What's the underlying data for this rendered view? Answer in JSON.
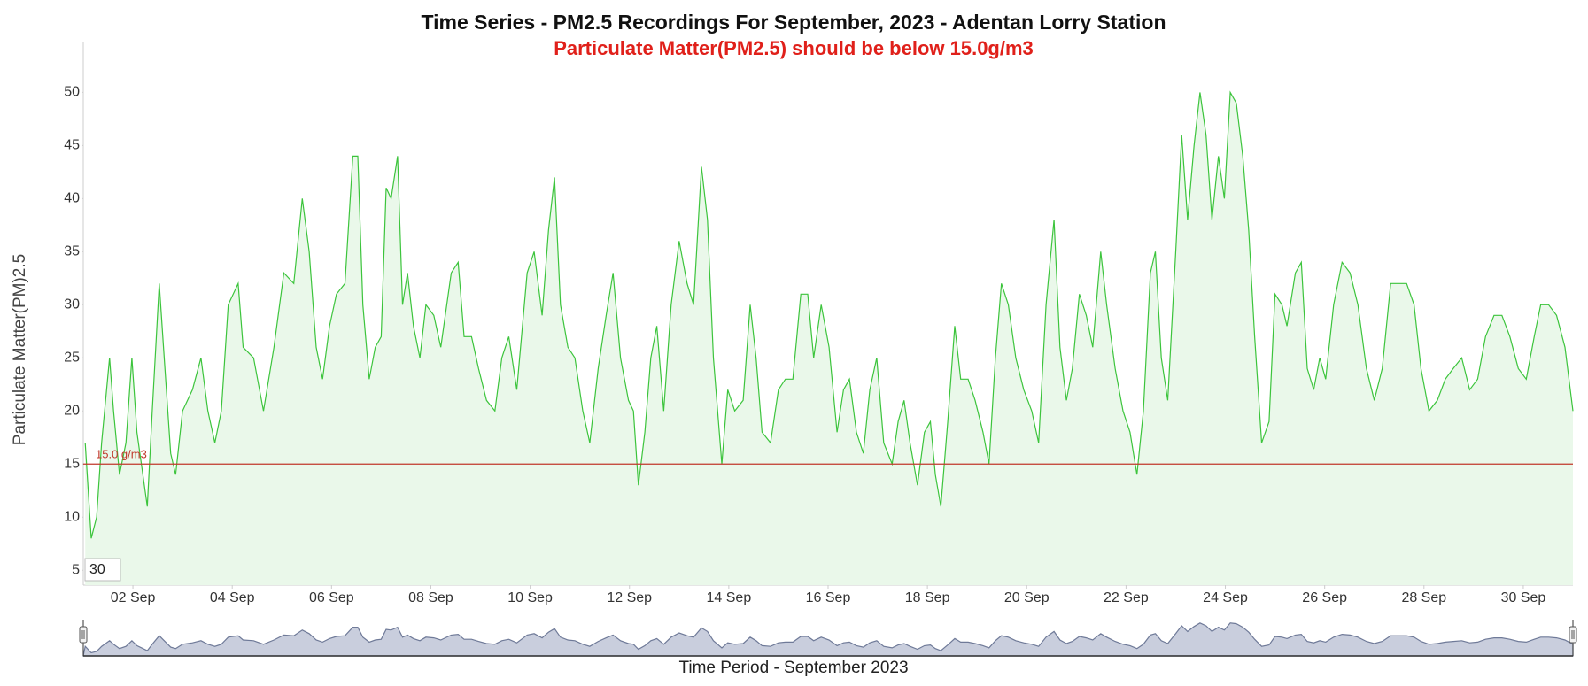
{
  "chart_data": {
    "type": "area",
    "title": "Time Series - PM2.5 Recordings For September, 2023 - Adentan Lorry Station",
    "subtitle": "Particulate Matter(PM2.5) should be below 15.0g/m3",
    "y_label": "Particulate Matter(PM)2.5",
    "x_label": "Time Period - September 2023",
    "range_input": "30",
    "threshold": {
      "value": 15,
      "label": "15.0 g/m3",
      "color": "#c0392b"
    },
    "color": "#3cc43c",
    "fill": "#eaf8ea",
    "grid": false,
    "xlim": [
      1,
      31
    ],
    "ylim": [
      3.6,
      54.7
    ],
    "yticks": [
      5,
      10,
      15,
      20,
      25,
      30,
      35,
      40,
      45,
      50
    ],
    "xticks": [
      {
        "value": 2,
        "label": "02 Sep"
      },
      {
        "value": 4,
        "label": "04 Sep"
      },
      {
        "value": 6,
        "label": "06 Sep"
      },
      {
        "value": 8,
        "label": "08 Sep"
      },
      {
        "value": 10,
        "label": "10 Sep"
      },
      {
        "value": 12,
        "label": "12 Sep"
      },
      {
        "value": 14,
        "label": "14 Sep"
      },
      {
        "value": 16,
        "label": "16 Sep"
      },
      {
        "value": 18,
        "label": "18 Sep"
      },
      {
        "value": 20,
        "label": "20 Sep"
      },
      {
        "value": 22,
        "label": "22 Sep"
      },
      {
        "value": 24,
        "label": "24 Sep"
      },
      {
        "value": 26,
        "label": "26 Sep"
      },
      {
        "value": 28,
        "label": "28 Sep"
      },
      {
        "value": 30,
        "label": "30 Sep"
      }
    ],
    "x": [
      1.04,
      1.16,
      1.27,
      1.37,
      1.53,
      1.61,
      1.73,
      1.86,
      1.98,
      2.08,
      2.29,
      2.39,
      2.53,
      2.63,
      2.76,
      2.86,
      3.0,
      3.2,
      3.37,
      3.51,
      3.65,
      3.78,
      3.92,
      4.12,
      4.22,
      4.43,
      4.63,
      4.84,
      5.04,
      5.24,
      5.41,
      5.55,
      5.69,
      5.82,
      5.96,
      6.1,
      6.27,
      6.43,
      6.53,
      6.63,
      6.76,
      6.88,
      7.0,
      7.1,
      7.2,
      7.33,
      7.43,
      7.53,
      7.65,
      7.78,
      7.9,
      8.06,
      8.2,
      8.41,
      8.55,
      8.67,
      8.82,
      8.96,
      9.12,
      9.29,
      9.43,
      9.57,
      9.73,
      9.94,
      10.08,
      10.24,
      10.37,
      10.49,
      10.61,
      10.76,
      10.9,
      11.06,
      11.2,
      11.37,
      11.53,
      11.67,
      11.82,
      11.98,
      12.08,
      12.18,
      12.31,
      12.43,
      12.55,
      12.69,
      12.84,
      13.0,
      13.16,
      13.29,
      13.45,
      13.57,
      13.69,
      13.86,
      13.98,
      14.12,
      14.29,
      14.43,
      14.55,
      14.67,
      14.84,
      15.0,
      15.14,
      15.29,
      15.45,
      15.59,
      15.71,
      15.86,
      16.02,
      16.18,
      16.31,
      16.43,
      16.57,
      16.71,
      16.84,
      16.98,
      17.12,
      17.29,
      17.41,
      17.53,
      17.65,
      17.8,
      17.94,
      18.06,
      18.16,
      18.27,
      18.41,
      18.55,
      18.67,
      18.82,
      18.96,
      19.12,
      19.24,
      19.37,
      19.49,
      19.63,
      19.78,
      19.94,
      20.1,
      20.24,
      20.39,
      20.55,
      20.67,
      20.8,
      20.92,
      21.06,
      21.2,
      21.33,
      21.49,
      21.61,
      21.78,
      21.94,
      22.08,
      22.22,
      22.35,
      22.49,
      22.59,
      22.71,
      22.84,
      23.0,
      23.12,
      23.24,
      23.37,
      23.49,
      23.61,
      23.73,
      23.86,
      23.98,
      24.1,
      24.22,
      24.35,
      24.47,
      24.59,
      24.73,
      24.88,
      25.0,
      25.14,
      25.24,
      25.41,
      25.53,
      25.65,
      25.78,
      25.9,
      26.02,
      26.18,
      26.35,
      26.51,
      26.67,
      26.84,
      27.0,
      27.16,
      27.33,
      27.49,
      27.65,
      27.8,
      27.94,
      28.1,
      28.27,
      28.43,
      28.59,
      28.76,
      28.92,
      29.08,
      29.24,
      29.41,
      29.57,
      29.73,
      29.9,
      30.06,
      30.22,
      30.35,
      30.51,
      30.67,
      30.84,
      31.0
    ],
    "values": [
      17,
      8,
      10,
      17,
      25,
      20,
      14,
      17,
      25,
      18,
      11,
      20,
      32,
      25,
      16,
      14,
      20,
      22,
      25,
      20,
      17,
      20,
      30,
      32,
      26,
      25,
      20,
      26,
      33,
      32,
      40,
      35,
      26,
      23,
      28,
      31,
      32,
      44,
      44,
      30,
      23,
      26,
      27,
      41,
      40,
      44,
      30,
      33,
      28,
      25,
      30,
      29,
      26,
      33,
      34,
      27,
      27,
      24,
      21,
      20,
      25,
      27,
      22,
      33,
      35,
      29,
      37,
      42,
      30,
      26,
      25,
      20,
      17,
      24,
      29,
      33,
      25,
      21,
      20,
      13,
      18,
      25,
      28,
      20,
      30,
      36,
      32,
      30,
      43,
      38,
      25,
      15,
      22,
      20,
      21,
      30,
      25,
      18,
      17,
      22,
      23,
      23,
      31,
      31,
      25,
      30,
      26,
      18,
      22,
      23,
      18,
      16,
      22,
      25,
      17,
      15,
      19,
      21,
      17,
      13,
      18,
      19,
      14,
      11,
      19,
      28,
      23,
      23,
      21,
      18,
      15,
      25,
      32,
      30,
      25,
      22,
      20,
      17,
      30,
      38,
      26,
      21,
      24,
      31,
      29,
      26,
      35,
      30,
      24,
      20,
      18,
      14,
      20,
      33,
      35,
      25,
      21,
      35,
      46,
      38,
      45,
      50,
      46,
      38,
      44,
      40,
      50,
      49,
      44,
      37,
      27,
      17,
      19,
      31,
      30,
      28,
      33,
      34,
      24,
      22,
      25,
      23,
      30,
      34,
      33,
      30,
      24,
      21,
      24,
      32,
      32,
      32,
      30,
      24,
      20,
      21,
      23,
      24,
      25,
      22,
      23,
      27,
      29,
      29,
      27,
      24,
      23,
      27,
      30,
      30,
      29,
      26,
      20
    ]
  }
}
